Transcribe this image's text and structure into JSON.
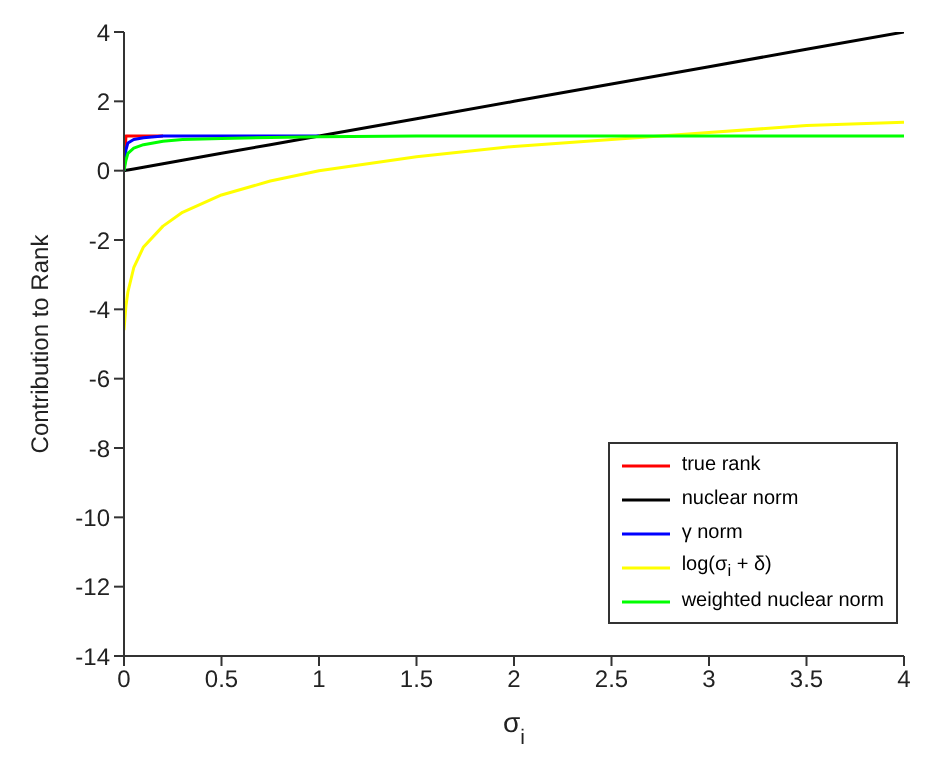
{
  "chart_data": {
    "type": "line",
    "xlabel": "σ$_{i}$",
    "ylabel": "Contribution to Rank",
    "x": [
      0,
      0.01,
      0.02,
      0.05,
      0.1,
      0.2,
      0.3,
      0.5,
      0.75,
      1,
      1.5,
      2,
      2.5,
      3,
      3.5,
      4
    ],
    "series": [
      {
        "name": "true rank",
        "color": "#ff0000",
        "values": [
          0,
          1,
          1,
          1,
          1,
          1,
          null,
          null,
          null,
          null,
          null,
          null,
          null,
          null,
          null,
          null
        ]
      },
      {
        "name": "nuclear norm",
        "color": "#000000",
        "values": [
          0,
          0.01,
          0.02,
          0.05,
          0.1,
          0.2,
          0.3,
          0.5,
          0.75,
          1,
          1.5,
          2,
          2.5,
          3,
          3.5,
          4
        ]
      },
      {
        "name": "γ norm",
        "color": "#0000ff",
        "values": [
          0,
          0.6,
          0.8,
          0.9,
          0.95,
          1,
          1,
          1,
          1,
          1,
          null,
          null,
          null,
          null,
          null,
          null
        ]
      },
      {
        "name": "log(σ$_{i}$ + δ)",
        "color": "#ffff00",
        "values": [
          -4.6,
          -3.9,
          -3.5,
          -2.8,
          -2.2,
          -1.6,
          -1.2,
          -0.7,
          -0.3,
          0,
          0.4,
          0.7,
          0.9,
          1.1,
          1.3,
          1.4
        ]
      },
      {
        "name": "weighted nuclear norm",
        "color": "#00ff00",
        "values": [
          0,
          0.3,
          0.5,
          0.65,
          0.75,
          0.85,
          0.9,
          0.93,
          0.96,
          0.98,
          1,
          1,
          1,
          1,
          1,
          1
        ]
      }
    ],
    "xlim": [
      0,
      4
    ],
    "xticks": [
      0,
      0.5,
      1,
      1.5,
      2,
      2.5,
      3,
      3.5,
      4
    ],
    "ylim": [
      -14,
      4
    ],
    "yticks": [
      -14,
      -12,
      -10,
      -8,
      -6,
      -4,
      -2,
      0,
      2,
      4
    ],
    "grid": false,
    "legend": "bottom right",
    "marker": "none",
    "line_style": "solid"
  }
}
